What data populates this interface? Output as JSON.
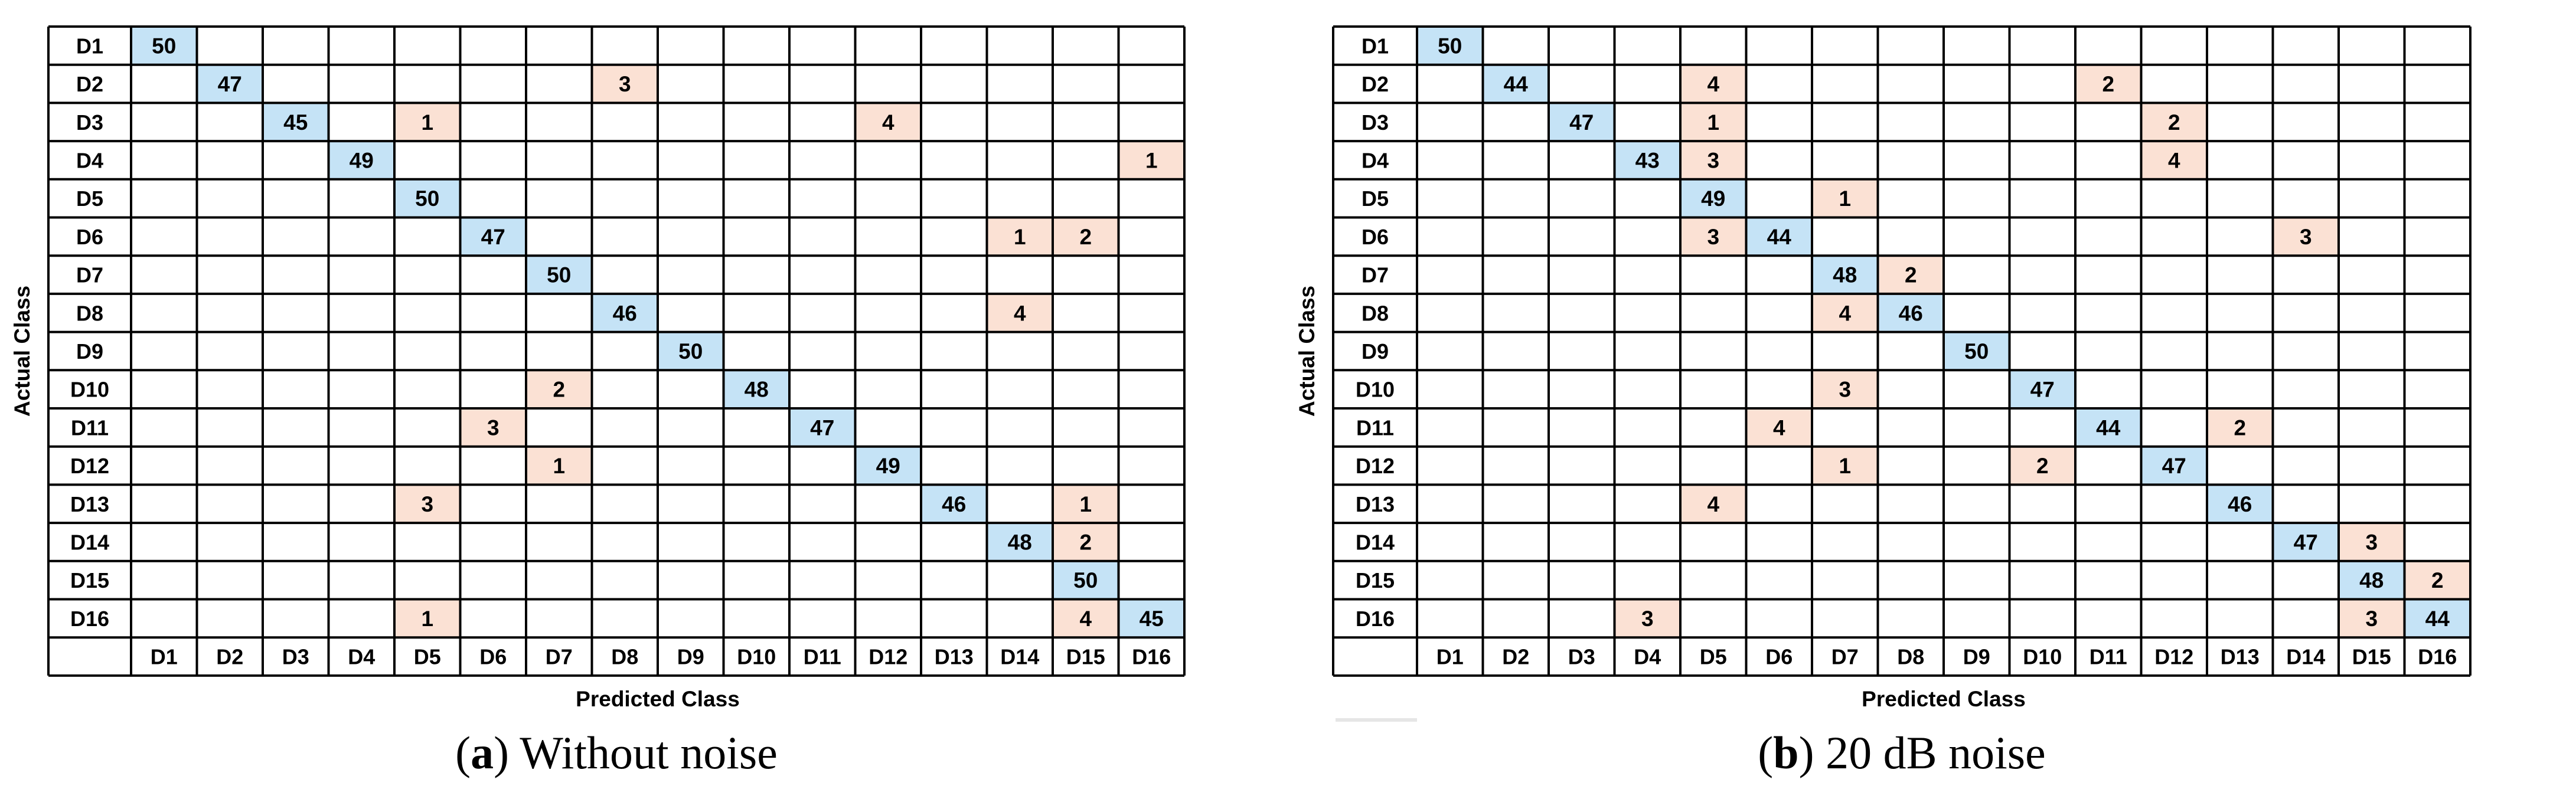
{
  "chart_data": [
    {
      "type": "heatmap",
      "panel_label": "a",
      "caption": "Without noise",
      "xlabel": "Predicted Class",
      "ylabel": "Actual Class",
      "row_labels": [
        "D1",
        "D2",
        "D3",
        "D4",
        "D5",
        "D6",
        "D7",
        "D8",
        "D9",
        "D10",
        "D11",
        "D12",
        "D13",
        "D14",
        "D15",
        "D16"
      ],
      "col_labels": [
        "D1",
        "D2",
        "D3",
        "D4",
        "D5",
        "D6",
        "D7",
        "D8",
        "D9",
        "D10",
        "D11",
        "D12",
        "D13",
        "D14",
        "D15",
        "D16"
      ],
      "matrix": [
        [
          50,
          null,
          null,
          null,
          null,
          null,
          null,
          null,
          null,
          null,
          null,
          null,
          null,
          null,
          null,
          null
        ],
        [
          null,
          47,
          null,
          null,
          null,
          null,
          null,
          3,
          null,
          null,
          null,
          null,
          null,
          null,
          null,
          null
        ],
        [
          null,
          null,
          45,
          null,
          1,
          null,
          null,
          null,
          null,
          null,
          null,
          4,
          null,
          null,
          null,
          null
        ],
        [
          null,
          null,
          null,
          49,
          null,
          null,
          null,
          null,
          null,
          null,
          null,
          null,
          null,
          null,
          null,
          1
        ],
        [
          null,
          null,
          null,
          null,
          50,
          null,
          null,
          null,
          null,
          null,
          null,
          null,
          null,
          null,
          null,
          null
        ],
        [
          null,
          null,
          null,
          null,
          null,
          47,
          null,
          null,
          null,
          null,
          null,
          null,
          null,
          1,
          2,
          null
        ],
        [
          null,
          null,
          null,
          null,
          null,
          null,
          50,
          null,
          null,
          null,
          null,
          null,
          null,
          null,
          null,
          null
        ],
        [
          null,
          null,
          null,
          null,
          null,
          null,
          null,
          46,
          null,
          null,
          null,
          null,
          null,
          4,
          null,
          null
        ],
        [
          null,
          null,
          null,
          null,
          null,
          null,
          null,
          null,
          50,
          null,
          null,
          null,
          null,
          null,
          null,
          null
        ],
        [
          null,
          null,
          null,
          null,
          null,
          null,
          2,
          null,
          null,
          48,
          null,
          null,
          null,
          null,
          null,
          null
        ],
        [
          null,
          null,
          null,
          null,
          null,
          3,
          null,
          null,
          null,
          null,
          47,
          null,
          null,
          null,
          null,
          null
        ],
        [
          null,
          null,
          null,
          null,
          null,
          null,
          1,
          null,
          null,
          null,
          null,
          49,
          null,
          null,
          null,
          null
        ],
        [
          null,
          null,
          null,
          null,
          3,
          null,
          null,
          null,
          null,
          null,
          null,
          null,
          46,
          null,
          1,
          null
        ],
        [
          null,
          null,
          null,
          null,
          null,
          null,
          null,
          null,
          null,
          null,
          null,
          null,
          null,
          48,
          2,
          null
        ],
        [
          null,
          null,
          null,
          null,
          null,
          null,
          null,
          null,
          null,
          null,
          null,
          null,
          null,
          null,
          50,
          null
        ],
        [
          null,
          null,
          null,
          null,
          1,
          null,
          null,
          null,
          null,
          null,
          null,
          null,
          null,
          null,
          4,
          45
        ]
      ]
    },
    {
      "type": "heatmap",
      "panel_label": "b",
      "caption": "20 dB noise",
      "xlabel": "Predicted Class",
      "ylabel": "Actual Class",
      "row_labels": [
        "D1",
        "D2",
        "D3",
        "D4",
        "D5",
        "D6",
        "D7",
        "D8",
        "D9",
        "D10",
        "D11",
        "D12",
        "D13",
        "D14",
        "D15",
        "D16"
      ],
      "col_labels": [
        "D1",
        "D2",
        "D3",
        "D4",
        "D5",
        "D6",
        "D7",
        "D8",
        "D9",
        "D10",
        "D11",
        "D12",
        "D13",
        "D14",
        "D15",
        "D16"
      ],
      "matrix": [
        [
          50,
          null,
          null,
          null,
          null,
          null,
          null,
          null,
          null,
          null,
          null,
          null,
          null,
          null,
          null,
          null
        ],
        [
          null,
          44,
          null,
          null,
          4,
          null,
          null,
          null,
          null,
          null,
          2,
          null,
          null,
          null,
          null,
          null
        ],
        [
          null,
          null,
          47,
          null,
          1,
          null,
          null,
          null,
          null,
          null,
          null,
          2,
          null,
          null,
          null,
          null
        ],
        [
          null,
          null,
          null,
          43,
          3,
          null,
          null,
          null,
          null,
          null,
          null,
          4,
          null,
          null,
          null,
          null
        ],
        [
          null,
          null,
          null,
          null,
          49,
          null,
          1,
          null,
          null,
          null,
          null,
          null,
          null,
          null,
          null,
          null
        ],
        [
          null,
          null,
          null,
          null,
          3,
          44,
          null,
          null,
          null,
          null,
          null,
          null,
          null,
          3,
          null,
          null
        ],
        [
          null,
          null,
          null,
          null,
          null,
          null,
          48,
          2,
          null,
          null,
          null,
          null,
          null,
          null,
          null,
          null
        ],
        [
          null,
          null,
          null,
          null,
          null,
          null,
          4,
          46,
          null,
          null,
          null,
          null,
          null,
          null,
          null,
          null
        ],
        [
          null,
          null,
          null,
          null,
          null,
          null,
          null,
          null,
          50,
          null,
          null,
          null,
          null,
          null,
          null,
          null
        ],
        [
          null,
          null,
          null,
          null,
          null,
          null,
          3,
          null,
          null,
          47,
          null,
          null,
          null,
          null,
          null,
          null
        ],
        [
          null,
          null,
          null,
          null,
          null,
          4,
          null,
          null,
          null,
          null,
          44,
          null,
          2,
          null,
          null,
          null
        ],
        [
          null,
          null,
          null,
          null,
          null,
          null,
          1,
          null,
          null,
          2,
          null,
          47,
          null,
          null,
          null,
          null
        ],
        [
          null,
          null,
          null,
          null,
          4,
          null,
          null,
          null,
          null,
          null,
          null,
          null,
          46,
          null,
          null,
          null
        ],
        [
          null,
          null,
          null,
          null,
          null,
          null,
          null,
          null,
          null,
          null,
          null,
          null,
          null,
          47,
          3,
          null
        ],
        [
          null,
          null,
          null,
          null,
          null,
          null,
          null,
          null,
          null,
          null,
          null,
          null,
          null,
          null,
          48,
          2
        ],
        [
          null,
          null,
          null,
          3,
          null,
          null,
          null,
          null,
          null,
          null,
          null,
          null,
          null,
          null,
          3,
          44
        ]
      ]
    }
  ],
  "colors": {
    "diagonal": "#c5e3f6",
    "off_diagonal": "#fbe1d4",
    "grid": "#000000",
    "text": "#000000"
  }
}
